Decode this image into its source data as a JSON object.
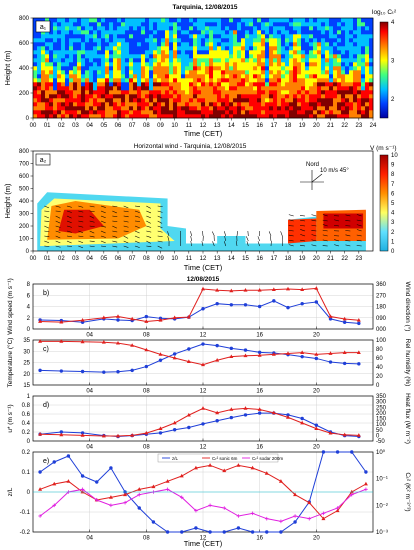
{
  "colors": {
    "blue": "#1f3fd8",
    "red": "#e0201e",
    "magenta": "#e020e0",
    "cyan": "#20c8d8",
    "colormap": [
      "#0000a0",
      "#0040ff",
      "#00c0ff",
      "#40ff80",
      "#ffff00",
      "#ff8000",
      "#ff0000",
      "#800000"
    ]
  },
  "chart_data": [
    {
      "id": "a1",
      "type": "heatmap",
      "title": "Tarquinia, 12/08/2015",
      "panel_label": "a₁",
      "xlabel": "Time (CET)",
      "ylabel": "Height (m)",
      "x_ticks": [
        "00",
        "01",
        "02",
        "03",
        "04",
        "05",
        "06",
        "07",
        "08",
        "09",
        "10",
        "11",
        "12",
        "13",
        "14",
        "15",
        "16",
        "17",
        "18",
        "19",
        "20",
        "21",
        "22",
        "23",
        "24"
      ],
      "y_ticks": [
        "0",
        "200",
        "400",
        "600",
        "800"
      ],
      "ylim": [
        0,
        800
      ],
      "colorbar_label": "log₁₀ Cₜ²",
      "colorbar_ticks": [
        "2",
        "3",
        "4"
      ],
      "zlim": [
        1.5,
        4
      ]
    },
    {
      "id": "a2",
      "type": "heatmap",
      "title": "Horizontal wind - Tarquinia, 12/08/2015",
      "panel_label": "a₂",
      "xlabel": "Time (CET)",
      "ylabel": "Height (m)",
      "x_ticks": [
        "00",
        "01",
        "02",
        "03",
        "04",
        "05",
        "06",
        "07",
        "08",
        "09",
        "10",
        "11",
        "12",
        "13",
        "14",
        "15",
        "16",
        "17",
        "18",
        "19",
        "20",
        "21",
        "22",
        "23"
      ],
      "y_ticks": [
        "0",
        "100",
        "200",
        "300",
        "400",
        "500",
        "600",
        "700",
        "800"
      ],
      "ylim": [
        0,
        800
      ],
      "colorbar_label": "V (m s⁻¹)",
      "colorbar_ticks": [
        "0",
        "1",
        "2",
        "3",
        "4",
        "5",
        "6",
        "7",
        "8",
        "9",
        "10"
      ],
      "zlim": [
        0,
        10
      ],
      "annotation": "Nord",
      "reference_arrow": "10 m/s 45°"
    },
    {
      "id": "b",
      "type": "line",
      "title": "12/08/2015",
      "panel_label": "b)",
      "x_ticks": [
        "04",
        "08",
        "12",
        "16",
        "20"
      ],
      "xlim": [
        0,
        24
      ],
      "left_axis": {
        "label": "Wind speed (m s⁻¹)",
        "ticks": [
          "0",
          "2",
          "4",
          "6",
          "8"
        ],
        "lim": [
          0,
          8
        ]
      },
      "right_axis": {
        "label": "Wind direction (°)",
        "ticks": [
          "000",
          "090",
          "180",
          "270",
          "360"
        ],
        "lim": [
          0,
          360
        ]
      },
      "series": [
        {
          "axis": "left",
          "color": "blue",
          "marker": "circle",
          "x": [
            0.5,
            2,
            3.5,
            5,
            6,
            7,
            8,
            9,
            10,
            11,
            12,
            13,
            14,
            15,
            16,
            17,
            18,
            19,
            20,
            21,
            22,
            23
          ],
          "y": [
            1.6,
            1.5,
            1.2,
            1.8,
            1.6,
            1.5,
            2.2,
            1.9,
            1.8,
            2.1,
            3.6,
            4.5,
            4.3,
            4.3,
            4.0,
            5.0,
            3.8,
            4.5,
            4.8,
            1.8,
            1.2,
            1.0
          ]
        },
        {
          "axis": "right",
          "color": "red",
          "marker": "triangle",
          "x": [
            0.5,
            2,
            3.5,
            5,
            6,
            7,
            8,
            9,
            10,
            11,
            12,
            13,
            14,
            15,
            16,
            17,
            18,
            19,
            20,
            21,
            22,
            23
          ],
          "y": [
            60,
            55,
            70,
            90,
            100,
            80,
            60,
            70,
            90,
            95,
            320,
            310,
            305,
            310,
            310,
            315,
            320,
            315,
            325,
            100,
            80,
            70
          ]
        }
      ]
    },
    {
      "id": "c",
      "type": "line",
      "panel_label": "c)",
      "x_ticks": [
        "04",
        "08",
        "12",
        "16",
        "20"
      ],
      "xlim": [
        0,
        24
      ],
      "left_axis": {
        "label": "Temperature (°C)",
        "ticks": [
          "15",
          "20",
          "25",
          "30",
          "35"
        ],
        "lim": [
          15,
          35
        ]
      },
      "right_axis": {
        "label": "Rel humidity (%)",
        "ticks": [
          "0",
          "20",
          "40",
          "60",
          "80",
          "100"
        ],
        "lim": [
          0,
          100
        ]
      },
      "series": [
        {
          "axis": "left",
          "color": "blue",
          "marker": "circle",
          "x": [
            0.5,
            2,
            3.5,
            5,
            6,
            7,
            8,
            9,
            10,
            11,
            12,
            13,
            14,
            15,
            16,
            17,
            18,
            19,
            20,
            21,
            22,
            23
          ],
          "y": [
            21.5,
            21.2,
            21.0,
            20.7,
            20.9,
            21.5,
            23.2,
            26.0,
            28.8,
            31.0,
            33.2,
            32.5,
            31.3,
            30.5,
            29.5,
            29.2,
            28.5,
            27.6,
            26.8,
            25.2,
            24.6,
            24.4
          ]
        },
        {
          "axis": "right",
          "color": "red",
          "marker": "triangle",
          "x": [
            0.5,
            2,
            3.5,
            5,
            6,
            7,
            8,
            9,
            10,
            11,
            12,
            13,
            14,
            15,
            16,
            17,
            18,
            19,
            20,
            21,
            22,
            23
          ],
          "y": [
            97,
            97,
            96,
            95,
            93,
            88,
            78,
            68,
            60,
            52,
            45,
            55,
            63,
            65,
            66,
            68,
            70,
            72,
            68,
            70,
            72,
            72
          ]
        }
      ]
    },
    {
      "id": "d",
      "type": "line",
      "panel_label": "d)",
      "x_ticks": [
        "04",
        "08",
        "12",
        "16",
        "20"
      ],
      "xlim": [
        0,
        24
      ],
      "left_axis": {
        "label": "u* (m s⁻¹)",
        "ticks": [
          "0",
          "0.2",
          "0.4",
          "0.6",
          "0.8",
          "1"
        ],
        "lim": [
          0,
          1
        ]
      },
      "right_axis": {
        "label": "Heat flux (W m⁻²)",
        "ticks": [
          "-50",
          "0",
          "50",
          "100",
          "150",
          "200",
          "250",
          "300",
          "350"
        ],
        "lim": [
          -50,
          350
        ]
      },
      "series": [
        {
          "axis": "left",
          "color": "blue",
          "marker": "circle",
          "x": [
            0.5,
            2,
            3.5,
            5,
            6,
            7,
            8,
            9,
            10,
            11,
            12,
            13,
            14,
            15,
            16,
            17,
            18,
            19,
            20,
            21,
            22,
            23
          ],
          "y": [
            0.15,
            0.2,
            0.18,
            0.12,
            0.1,
            0.12,
            0.15,
            0.18,
            0.25,
            0.3,
            0.38,
            0.45,
            0.52,
            0.58,
            0.62,
            0.62,
            0.58,
            0.5,
            0.35,
            0.2,
            0.12,
            0.1
          ]
        },
        {
          "axis": "right",
          "color": "red",
          "marker": "triangle",
          "x": [
            0.5,
            2,
            3.5,
            5,
            6,
            7,
            8,
            9,
            10,
            11,
            12,
            13,
            14,
            15,
            16,
            17,
            18,
            19,
            20,
            21,
            22,
            23
          ],
          "y": [
            10,
            5,
            0,
            -5,
            -5,
            0,
            20,
            60,
            110,
            180,
            240,
            200,
            230,
            240,
            230,
            200,
            160,
            110,
            60,
            20,
            5,
            0
          ]
        }
      ]
    },
    {
      "id": "e",
      "type": "line",
      "panel_label": "e)",
      "xlabel": "Time (CET)",
      "x_ticks": [
        "04",
        "08",
        "12",
        "16",
        "20"
      ],
      "xlim": [
        0,
        24
      ],
      "left_axis": {
        "label": "z/L",
        "ticks": [
          "-0.2",
          "-0.1",
          "0",
          "0.1",
          "0.2"
        ],
        "lim": [
          -0.2,
          0.2
        ]
      },
      "right_axis": {
        "label": "Cₜ² (K² m⁻²ᐟ³)",
        "ticks": [
          "10⁻³",
          "10⁻²",
          "10⁻¹",
          "10⁰"
        ],
        "lim": [
          -3,
          0
        ],
        "scale": "log"
      },
      "legend": [
        "z/L",
        "Cₜ² sonic 6m",
        "Cₜ² sodar 200m"
      ],
      "legend_position": "top-center",
      "series": [
        {
          "name": "z/L",
          "axis": "left",
          "color": "blue",
          "marker": "circle",
          "x": [
            0.5,
            1.5,
            2.5,
            3.5,
            4.5,
            5.5,
            6.5,
            7.5,
            8.5,
            9.5,
            10.5,
            11.5,
            12.5,
            13.5,
            14.5,
            15.5,
            16.5,
            17.5,
            18.5,
            19.5,
            20.5,
            21.5,
            22.5,
            23.5
          ],
          "y": [
            0.1,
            0.15,
            0.18,
            0.08,
            0.05,
            0.12,
            0.0,
            -0.08,
            -0.15,
            -0.2,
            -0.2,
            -0.18,
            -0.2,
            -0.2,
            -0.18,
            -0.2,
            -0.2,
            -0.2,
            -0.15,
            -0.05,
            0.2,
            0.2,
            0.2,
            0.1
          ]
        },
        {
          "name": "Cₜ² sonic 6m",
          "axis": "right",
          "color": "red",
          "marker": "triangle",
          "x": [
            0.5,
            1.5,
            2.5,
            3.5,
            4.5,
            5.5,
            6.5,
            7.5,
            8.5,
            9.5,
            10.5,
            11.5,
            12.5,
            13.5,
            14.5,
            15.5,
            16.5,
            17.5,
            18.5,
            19.5,
            20.5,
            21.5,
            22.5,
            23.5
          ],
          "y": [
            -1.4,
            -1.2,
            -1.1,
            -1.5,
            -1.8,
            -1.7,
            -1.6,
            -1.4,
            -1.3,
            -1.1,
            -0.9,
            -0.6,
            -0.5,
            -0.7,
            -0.5,
            -0.6,
            -0.8,
            -1.1,
            -1.6,
            -1.9,
            -2.5,
            -2.2,
            -1.5,
            -1.2
          ]
        },
        {
          "name": "Cₜ² sodar 200m",
          "axis": "right",
          "color": "magenta",
          "marker": "cross",
          "x": [
            0.5,
            1.5,
            2.5,
            3.5,
            4.5,
            5.5,
            6.5,
            7.5,
            8.5,
            9.5,
            10.5,
            11.5,
            12.5,
            13.5,
            14.5,
            15.5,
            16.5,
            17.5,
            18.5,
            19.5,
            20.5,
            21.5,
            22.5,
            23.5
          ],
          "y": [
            -2.4,
            -2.0,
            -1.5,
            -1.4,
            -1.8,
            -2.0,
            -1.9,
            -1.6,
            -1.5,
            -1.4,
            -1.7,
            -2.2,
            -2.0,
            -2.1,
            -2.4,
            -2.3,
            -2.5,
            -2.6,
            -2.4,
            -2.5,
            -2.3,
            -2.1,
            -1.6,
            -1.4
          ]
        }
      ]
    }
  ]
}
